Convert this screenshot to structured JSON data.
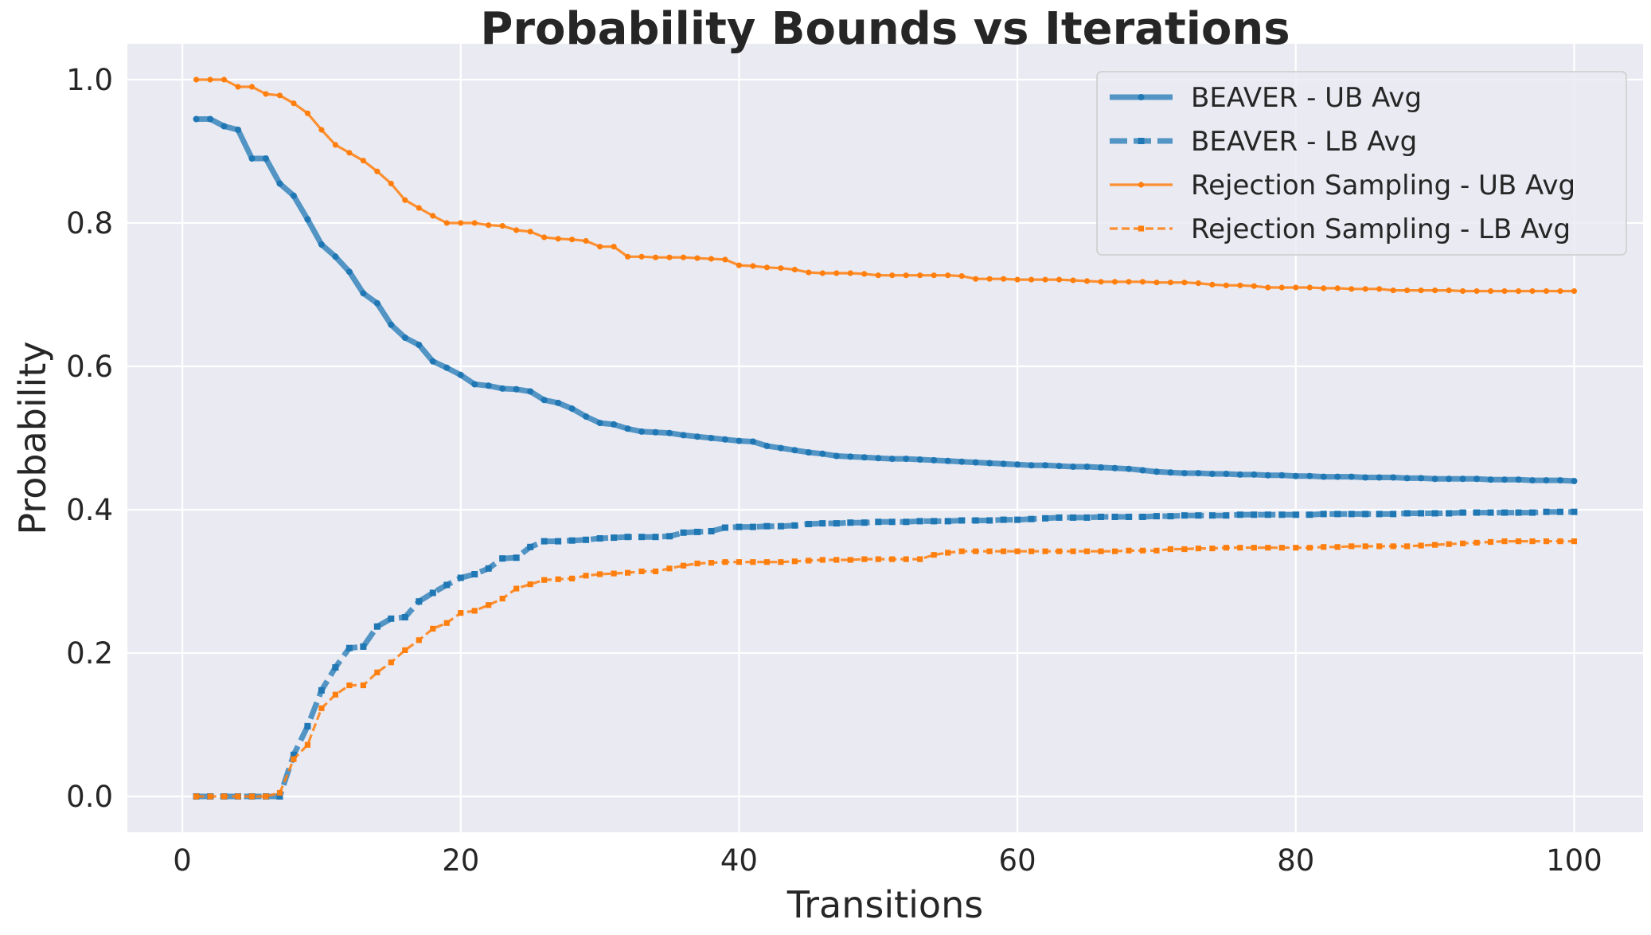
{
  "chart_data": {
    "type": "line",
    "title": "Probability Bounds vs Iterations",
    "xlabel": "Transitions",
    "ylabel": "Probability",
    "xlim": [
      -3.95,
      104.95
    ],
    "ylim": [
      -0.05,
      1.05
    ],
    "xticks": [
      0,
      20,
      40,
      60,
      80,
      100
    ],
    "yticks": [
      0.0,
      0.2,
      0.4,
      0.6,
      0.8,
      1.0
    ],
    "xtick_labels": [
      "0",
      "20",
      "40",
      "60",
      "80",
      "100"
    ],
    "ytick_labels": [
      "0.0",
      "0.2",
      "0.4",
      "0.6",
      "0.8",
      "1.0"
    ],
    "grid": true,
    "legend_position": "top-right",
    "background": "#eaeaf2",
    "series": [
      {
        "name": "BEAVER - UB Avg",
        "color": "#1f77b4",
        "style": "solid",
        "marker": "circle",
        "values": [
          0.945,
          0.945,
          0.935,
          0.93,
          0.89,
          0.89,
          0.855,
          0.838,
          0.805,
          0.77,
          0.753,
          0.732,
          0.702,
          0.688,
          0.658,
          0.64,
          0.63,
          0.607,
          0.598,
          0.588,
          0.575,
          0.573,
          0.569,
          0.568,
          0.565,
          0.553,
          0.549,
          0.541,
          0.53,
          0.521,
          0.519,
          0.513,
          0.509,
          0.508,
          0.507,
          0.504,
          0.502,
          0.5,
          0.498,
          0.496,
          0.495,
          0.489,
          0.486,
          0.483,
          0.48,
          0.478,
          0.475,
          0.474,
          0.473,
          0.472,
          0.471,
          0.471,
          0.47,
          0.469,
          0.468,
          0.467,
          0.466,
          0.465,
          0.464,
          0.463,
          0.462,
          0.462,
          0.461,
          0.46,
          0.46,
          0.459,
          0.458,
          0.457,
          0.455,
          0.453,
          0.452,
          0.451,
          0.451,
          0.45,
          0.45,
          0.449,
          0.449,
          0.448,
          0.448,
          0.447,
          0.447,
          0.446,
          0.446,
          0.446,
          0.445,
          0.445,
          0.445,
          0.444,
          0.444,
          0.443,
          0.443,
          0.443,
          0.443,
          0.442,
          0.442,
          0.442,
          0.441,
          0.441,
          0.441,
          0.44
        ]
      },
      {
        "name": "BEAVER - LB Avg",
        "color": "#1f77b4",
        "style": "dashed",
        "marker": "square",
        "values": [
          0.0,
          0.0,
          0.0,
          0.0,
          0.0,
          0.0,
          0.0,
          0.058,
          0.098,
          0.148,
          0.18,
          0.207,
          0.209,
          0.237,
          0.248,
          0.25,
          0.272,
          0.284,
          0.295,
          0.305,
          0.31,
          0.318,
          0.332,
          0.333,
          0.348,
          0.356,
          0.356,
          0.357,
          0.358,
          0.36,
          0.361,
          0.362,
          0.362,
          0.362,
          0.363,
          0.368,
          0.369,
          0.37,
          0.375,
          0.376,
          0.376,
          0.377,
          0.377,
          0.378,
          0.38,
          0.381,
          0.381,
          0.382,
          0.382,
          0.383,
          0.383,
          0.383,
          0.384,
          0.384,
          0.384,
          0.385,
          0.385,
          0.385,
          0.386,
          0.386,
          0.387,
          0.388,
          0.389,
          0.389,
          0.389,
          0.39,
          0.39,
          0.39,
          0.39,
          0.391,
          0.391,
          0.392,
          0.392,
          0.392,
          0.392,
          0.393,
          0.393,
          0.393,
          0.393,
          0.393,
          0.393,
          0.394,
          0.394,
          0.394,
          0.394,
          0.394,
          0.394,
          0.395,
          0.395,
          0.395,
          0.395,
          0.396,
          0.396,
          0.396,
          0.396,
          0.396,
          0.396,
          0.397,
          0.397,
          0.397
        ]
      },
      {
        "name": "Rejection Sampling - UB Avg",
        "color": "#ff7f0e",
        "style": "solid",
        "marker": "circle",
        "values": [
          1.0,
          1.0,
          1.0,
          0.99,
          0.99,
          0.98,
          0.978,
          0.967,
          0.953,
          0.93,
          0.909,
          0.898,
          0.887,
          0.872,
          0.855,
          0.832,
          0.821,
          0.81,
          0.8,
          0.8,
          0.8,
          0.797,
          0.796,
          0.79,
          0.788,
          0.78,
          0.778,
          0.777,
          0.775,
          0.767,
          0.767,
          0.753,
          0.753,
          0.752,
          0.752,
          0.752,
          0.751,
          0.75,
          0.749,
          0.741,
          0.74,
          0.738,
          0.737,
          0.735,
          0.731,
          0.73,
          0.73,
          0.73,
          0.729,
          0.727,
          0.727,
          0.727,
          0.727,
          0.727,
          0.727,
          0.726,
          0.722,
          0.722,
          0.722,
          0.721,
          0.721,
          0.721,
          0.721,
          0.72,
          0.719,
          0.718,
          0.718,
          0.718,
          0.718,
          0.717,
          0.717,
          0.717,
          0.716,
          0.714,
          0.713,
          0.713,
          0.712,
          0.71,
          0.71,
          0.71,
          0.71,
          0.709,
          0.709,
          0.708,
          0.708,
          0.708,
          0.706,
          0.706,
          0.706,
          0.706,
          0.706,
          0.705,
          0.705,
          0.705,
          0.705,
          0.705,
          0.705,
          0.705,
          0.705,
          0.705
        ]
      },
      {
        "name": "Rejection Sampling - LB Avg",
        "color": "#ff7f0e",
        "style": "dashed",
        "marker": "square",
        "values": [
          0.0,
          0.0,
          0.0,
          0.0,
          0.0,
          0.0,
          0.005,
          0.052,
          0.072,
          0.123,
          0.142,
          0.155,
          0.155,
          0.173,
          0.187,
          0.204,
          0.218,
          0.234,
          0.242,
          0.256,
          0.259,
          0.267,
          0.276,
          0.29,
          0.296,
          0.302,
          0.303,
          0.304,
          0.308,
          0.31,
          0.311,
          0.312,
          0.314,
          0.314,
          0.318,
          0.322,
          0.325,
          0.326,
          0.327,
          0.327,
          0.327,
          0.327,
          0.327,
          0.328,
          0.329,
          0.33,
          0.33,
          0.33,
          0.331,
          0.331,
          0.331,
          0.331,
          0.331,
          0.337,
          0.34,
          0.342,
          0.342,
          0.342,
          0.342,
          0.342,
          0.342,
          0.342,
          0.342,
          0.342,
          0.342,
          0.342,
          0.342,
          0.343,
          0.343,
          0.343,
          0.345,
          0.345,
          0.346,
          0.346,
          0.347,
          0.347,
          0.347,
          0.347,
          0.347,
          0.347,
          0.347,
          0.348,
          0.348,
          0.349,
          0.349,
          0.349,
          0.349,
          0.349,
          0.35,
          0.351,
          0.352,
          0.353,
          0.354,
          0.355,
          0.356,
          0.356,
          0.356,
          0.356,
          0.356,
          0.356
        ]
      }
    ]
  }
}
